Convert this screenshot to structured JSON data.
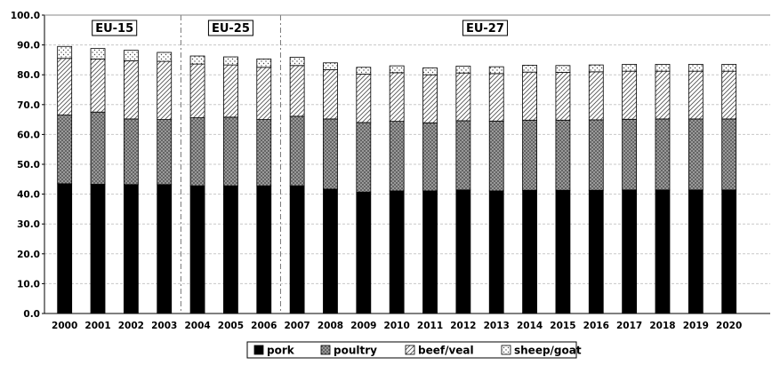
{
  "chart_data": {
    "type": "bar",
    "stacked": true,
    "categories": [
      "2000",
      "2001",
      "2002",
      "2003",
      "2004",
      "2005",
      "2006",
      "2007",
      "2008",
      "2009",
      "2010",
      "2011",
      "2012",
      "2013",
      "2014",
      "2015",
      "2016",
      "2017",
      "2018",
      "2019",
      "2020"
    ],
    "series": [
      {
        "name": "pork",
        "pattern": "solid-black",
        "values": [
          43.5,
          43.3,
          43.2,
          43.2,
          42.8,
          42.8,
          42.8,
          42.8,
          41.7,
          40.7,
          41.1,
          41.1,
          41.4,
          41.1,
          41.3,
          41.3,
          41.3,
          41.4,
          41.4,
          41.4,
          41.4
        ]
      },
      {
        "name": "poultry",
        "pattern": "crosshatch",
        "values": [
          23.0,
          24.2,
          22.0,
          21.8,
          22.8,
          23.0,
          22.2,
          23.3,
          23.5,
          23.3,
          23.3,
          22.8,
          23.2,
          23.4,
          23.5,
          23.5,
          23.6,
          23.7,
          23.8,
          23.8,
          23.8
        ]
      },
      {
        "name": "beef/veal",
        "pattern": "diagonal",
        "values": [
          19.0,
          17.8,
          19.5,
          19.5,
          18.0,
          17.5,
          17.5,
          17.0,
          16.5,
          16.2,
          16.3,
          16.1,
          16.0,
          15.9,
          16.1,
          16.0,
          16.1,
          16.1,
          16.0,
          16.0,
          16.0
        ]
      },
      {
        "name": "sheep/goat",
        "pattern": "dotted",
        "values": [
          4.0,
          3.5,
          3.5,
          3.0,
          2.7,
          2.7,
          2.8,
          2.8,
          2.3,
          2.3,
          2.3,
          2.3,
          2.3,
          2.3,
          2.3,
          2.3,
          2.3,
          2.3,
          2.3,
          2.3,
          2.3
        ]
      }
    ],
    "ylim": [
      0,
      100
    ],
    "yticks": [
      "0.0",
      "10.0",
      "20.0",
      "30.0",
      "40.0",
      "50.0",
      "60.0",
      "70.0",
      "80.0",
      "90.0",
      "100.0"
    ],
    "grid": true,
    "legend_position": "bottom",
    "regions": [
      {
        "label": "EU-15",
        "from": "2000",
        "to": "2003"
      },
      {
        "label": "EU-25",
        "from": "2004",
        "to": "2006"
      },
      {
        "label": "EU-27",
        "from": "2007",
        "to": "2020"
      }
    ]
  }
}
